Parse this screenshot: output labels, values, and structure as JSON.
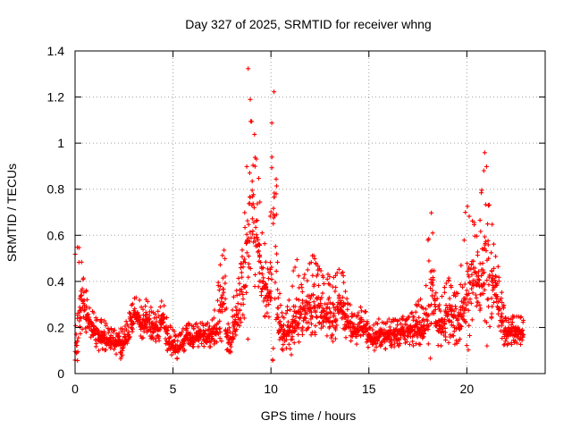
{
  "chart_data": {
    "type": "scatter",
    "title": "Day 327 of 2025, SRMTID for receiver whng",
    "xlabel": "GPS time / hours",
    "ylabel": "SRMTID / TECUs",
    "xlim": [
      0,
      24
    ],
    "ylim": [
      0,
      1.4
    ],
    "xticks": [
      0,
      5,
      10,
      15,
      20
    ],
    "xtick_labels": [
      "0",
      "5",
      "10",
      "15",
      "20"
    ],
    "yticks": [
      0,
      0.2,
      0.4,
      0.6,
      0.8,
      1.0,
      1.2,
      1.4
    ],
    "ytick_labels": [
      "0",
      "0.2",
      "0.4",
      "0.6",
      "0.8",
      "1",
      "1.2",
      "1.4"
    ],
    "grid": true,
    "marker": "+",
    "color": "#ff0000",
    "series": [
      {
        "name": "SRMTID",
        "x_start": 0.0,
        "x_step": 0.1,
        "mean": [
          0.14,
          0.2,
          0.26,
          0.32,
          0.3,
          0.26,
          0.24,
          0.22,
          0.2,
          0.19,
          0.18,
          0.17,
          0.16,
          0.16,
          0.16,
          0.15,
          0.14,
          0.14,
          0.15,
          0.14,
          0.13,
          0.13,
          0.14,
          0.12,
          0.13,
          0.14,
          0.15,
          0.18,
          0.22,
          0.24,
          0.26,
          0.25,
          0.23,
          0.22,
          0.21,
          0.22,
          0.24,
          0.23,
          0.21,
          0.2,
          0.2,
          0.19,
          0.2,
          0.22,
          0.23,
          0.22,
          0.18,
          0.15,
          0.14,
          0.13,
          0.12,
          0.11,
          0.11,
          0.12,
          0.13,
          0.14,
          0.15,
          0.16,
          0.16,
          0.15,
          0.15,
          0.16,
          0.16,
          0.17,
          0.17,
          0.16,
          0.17,
          0.16,
          0.16,
          0.17,
          0.18,
          0.19,
          0.2,
          0.24,
          0.28,
          0.3,
          0.34,
          0.18,
          0.15,
          0.14,
          0.18,
          0.22,
          0.25,
          0.28,
          0.32,
          0.36,
          0.42,
          0.5,
          0.6,
          0.68,
          0.72,
          0.66,
          0.6,
          0.55,
          0.48,
          0.42,
          0.38,
          0.34,
          0.32,
          0.4,
          0.52,
          0.58,
          0.46,
          0.3,
          0.22,
          0.18,
          0.16,
          0.17,
          0.19,
          0.2,
          0.2,
          0.22,
          0.24,
          0.26,
          0.27,
          0.26,
          0.27,
          0.28,
          0.29,
          0.3,
          0.31,
          0.32,
          0.31,
          0.3,
          0.29,
          0.28,
          0.27,
          0.26,
          0.27,
          0.28,
          0.27,
          0.26,
          0.27,
          0.28,
          0.29,
          0.28,
          0.28,
          0.26,
          0.24,
          0.22,
          0.21,
          0.2,
          0.19,
          0.18,
          0.2,
          0.22,
          0.21,
          0.2,
          0.19,
          0.17,
          0.15,
          0.14,
          0.15,
          0.16,
          0.16,
          0.17,
          0.17,
          0.16,
          0.16,
          0.17,
          0.17,
          0.16,
          0.17,
          0.18,
          0.17,
          0.17,
          0.18,
          0.18,
          0.17,
          0.18,
          0.18,
          0.19,
          0.18,
          0.19,
          0.2,
          0.21,
          0.22,
          0.2,
          0.19,
          0.22,
          0.28,
          0.34,
          0.38,
          0.3,
          0.24,
          0.2,
          0.2,
          0.22,
          0.24,
          0.25,
          0.26,
          0.25,
          0.24,
          0.23,
          0.22,
          0.23,
          0.24,
          0.26,
          0.3,
          0.34,
          0.38,
          0.4,
          0.42,
          0.42,
          0.4,
          0.4,
          0.42,
          0.44,
          0.46,
          0.48,
          0.46,
          0.44,
          0.42,
          0.4,
          0.38,
          0.35,
          0.3,
          0.24,
          0.2,
          0.18,
          0.18,
          0.18,
          0.18,
          0.18,
          0.18,
          0.18,
          0.18,
          0.18,
          0.18,
          0.18,
          0.18
        ],
        "peak": [
          0.52,
          0.55,
          0.55,
          0.5,
          0.42,
          0.38,
          0.33,
          0.3,
          0.28,
          0.27,
          0.26,
          0.25,
          0.24,
          0.24,
          0.24,
          0.22,
          0.21,
          0.2,
          0.2,
          0.2,
          0.19,
          0.19,
          0.19,
          0.2,
          0.2,
          0.21,
          0.23,
          0.28,
          0.3,
          0.32,
          0.34,
          0.33,
          0.32,
          0.3,
          0.29,
          0.3,
          0.33,
          0.32,
          0.29,
          0.27,
          0.27,
          0.26,
          0.28,
          0.3,
          0.32,
          0.3,
          0.25,
          0.22,
          0.21,
          0.2,
          0.19,
          0.17,
          0.17,
          0.18,
          0.19,
          0.2,
          0.21,
          0.22,
          0.22,
          0.21,
          0.21,
          0.22,
          0.22,
          0.23,
          0.23,
          0.22,
          0.23,
          0.22,
          0.22,
          0.24,
          0.25,
          0.28,
          0.32,
          0.4,
          0.48,
          0.52,
          0.55,
          0.3,
          0.22,
          0.2,
          0.28,
          0.34,
          0.38,
          0.42,
          0.48,
          0.55,
          0.7,
          0.9,
          1.33,
          1.2,
          1.1,
          1.05,
          0.95,
          0.85,
          0.75,
          0.62,
          0.58,
          0.5,
          0.46,
          0.7,
          1.1,
          1.23,
          0.85,
          0.5,
          0.35,
          0.28,
          0.25,
          0.27,
          0.3,
          0.33,
          0.38,
          0.45,
          0.48,
          0.5,
          0.44,
          0.4,
          0.42,
          0.44,
          0.46,
          0.48,
          0.5,
          0.52,
          0.5,
          0.49,
          0.47,
          0.45,
          0.43,
          0.41,
          0.42,
          0.44,
          0.43,
          0.42,
          0.43,
          0.45,
          0.47,
          0.45,
          0.44,
          0.4,
          0.36,
          0.32,
          0.3,
          0.28,
          0.26,
          0.25,
          0.28,
          0.3,
          0.29,
          0.28,
          0.27,
          0.24,
          0.22,
          0.2,
          0.22,
          0.23,
          0.23,
          0.24,
          0.24,
          0.23,
          0.23,
          0.24,
          0.24,
          0.23,
          0.24,
          0.25,
          0.24,
          0.24,
          0.25,
          0.25,
          0.24,
          0.25,
          0.26,
          0.27,
          0.26,
          0.28,
          0.3,
          0.32,
          0.34,
          0.3,
          0.28,
          0.4,
          0.6,
          0.7,
          0.62,
          0.45,
          0.36,
          0.3,
          0.3,
          0.34,
          0.38,
          0.4,
          0.42,
          0.4,
          0.38,
          0.36,
          0.35,
          0.36,
          0.4,
          0.48,
          0.58,
          0.7,
          0.74,
          0.7,
          0.68,
          0.66,
          0.6,
          0.6,
          0.68,
          0.8,
          0.9,
          0.97,
          0.9,
          0.75,
          0.65,
          0.58,
          0.52,
          0.48,
          0.42,
          0.36,
          0.3,
          0.26,
          0.25,
          0.25,
          0.25,
          0.25,
          0.25,
          0.25,
          0.25,
          0.25,
          0.25,
          0.25,
          0.25,
          0.25
        ],
        "x_end": 22.8,
        "min_value": 0.04
      }
    ]
  }
}
